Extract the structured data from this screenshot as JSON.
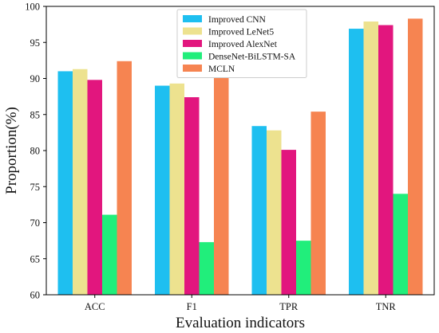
{
  "chart_data": {
    "type": "bar",
    "categories": [
      "ACC",
      "F1",
      "TPR",
      "TNR"
    ],
    "series": [
      {
        "name": "Improved CNN",
        "color": "#1ebff0",
        "values": [
          91.0,
          89.0,
          83.4,
          96.9
        ]
      },
      {
        "name": "Improved LeNet5",
        "color": "#ede28f",
        "values": [
          91.3,
          89.3,
          82.8,
          97.9
        ]
      },
      {
        "name": "Improved AlexNet",
        "color": "#e2167e",
        "values": [
          89.8,
          87.4,
          80.1,
          97.4
        ]
      },
      {
        "name": "DenseNet-BiLSTM-SA",
        "color": "#21ee7b",
        "values": [
          71.1,
          67.3,
          67.5,
          74.0
        ]
      },
      {
        "name": "MCLN",
        "color": "#f68451",
        "values": [
          92.4,
          91.1,
          85.4,
          98.3
        ]
      }
    ],
    "title": "",
    "xlabel": "Evaluation indicators",
    "ylabel": "Proportion(%)",
    "ylim": [
      60,
      100
    ],
    "yticks": [
      60,
      65,
      70,
      75,
      80,
      85,
      90,
      95,
      100
    ],
    "grid": false,
    "legend_position": "top-center"
  }
}
